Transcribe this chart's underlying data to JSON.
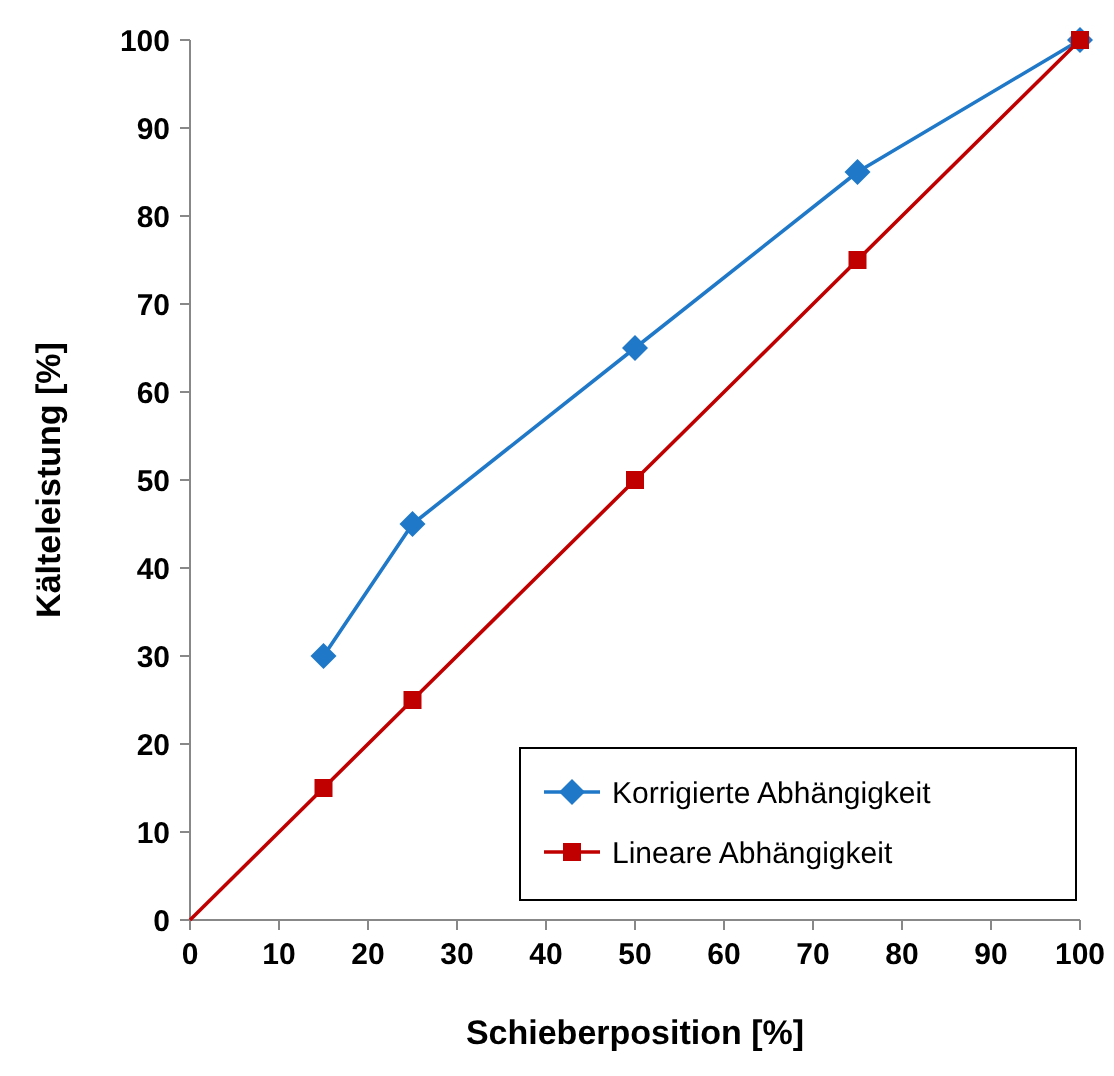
{
  "chart_data": {
    "type": "line",
    "xlabel": "Schieberposition [%]",
    "ylabel": "Kälteleistung [%]",
    "xlim": [
      0,
      100
    ],
    "ylim": [
      0,
      100
    ],
    "xticks": [
      0,
      10,
      20,
      30,
      40,
      50,
      60,
      70,
      80,
      90,
      100
    ],
    "yticks": [
      0,
      10,
      20,
      30,
      40,
      50,
      60,
      70,
      80,
      90,
      100
    ],
    "grid": false,
    "legend": "bottom right",
    "series": [
      {
        "name": "Korrigierte Abhängigkeit",
        "color": "#1f78c8",
        "marker": "diamond",
        "x": [
          15,
          25,
          50,
          75,
          100
        ],
        "values": [
          30,
          45,
          65,
          85,
          100
        ]
      },
      {
        "name": "Lineare Abhängigkeit",
        "color": "#c00000",
        "marker": "square",
        "x": [
          15,
          25,
          50,
          75,
          100
        ],
        "values": [
          15,
          25,
          50,
          75,
          100
        ]
      },
      {
        "color": "#c00000",
        "marker": "none",
        "x": [
          0,
          15
        ],
        "values": [
          0,
          15
        ]
      }
    ]
  }
}
